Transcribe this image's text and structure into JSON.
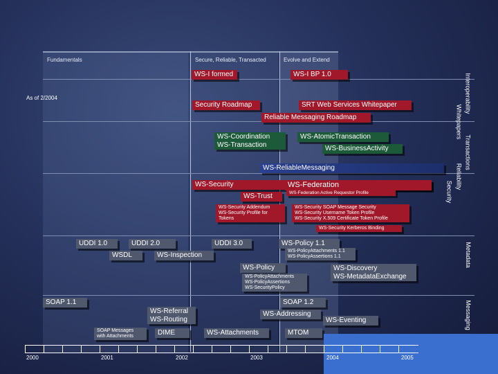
{
  "phases": [
    "Fundamentals",
    "Secure, Reliable, Transacted",
    "Evolve and Extend"
  ],
  "as_of": "As of 2/2004",
  "sides": {
    "interoperability": "Interoperability",
    "whitepapers": "Whitepapers",
    "transactions": "Transactions",
    "reliability": "Reliability",
    "security": "Security",
    "metadata": "Metadata",
    "messaging": "Messaging"
  },
  "boxes": {
    "wsi_formed": "WS-I formed",
    "wsi_bp": "WS-I BP 1.0",
    "security_roadmap": "Security Roadmap",
    "srt_whitepaper": "SRT Web Services Whitepaper",
    "reliable_roadmap": "Reliable Messaging Roadmap",
    "ws_coordination_1": "WS-Coordination",
    "ws_coordination_2": "WS-Transaction",
    "ws_atomic": "WS-AtomicTransaction",
    "ws_business": "WS-BusinessActivity",
    "ws_reliable": "WS-ReliableMessaging",
    "ws_security": "WS-Security",
    "ws_federation": "WS-Federation",
    "ws_trust": "WS-Trust",
    "ws_fed_active": "WS-Federation Active Requestor Profile",
    "sec_addendum_1": "WS-Security Addendum",
    "sec_addendum_2": "WS-Security Profile for",
    "sec_addendum_3": "Tokens",
    "sec_profiles_1": "WS-Security SOAP Message Security",
    "sec_profiles_2": "WS-Security Username Token Profile",
    "sec_profiles_3": "WS-Security X.509 Certificate Token Profile",
    "sec_kerberos": "WS-Security Kerberos Binding",
    "uddi1": "UDDI 1.0",
    "uddi2": "UDDI 2.0",
    "uddi3": "UDDI 3.0",
    "wsdl": "WSDL",
    "ws_inspection": "WS-Inspection",
    "ws_policy11": "WS-Policy 1.1",
    "ws_policy11_sub_1": "WS-PolicyAttachments 1.1",
    "ws_policy11_sub_2": "WS-PolicyAssertions 1.1",
    "ws_policy": "WS-Policy",
    "ws_policy_sub_1": "WS-PolicyAttachments",
    "ws_policy_sub_2": "WS-PolicyAssertions",
    "ws_policy_sub_3": "WS-SecurityPolicy",
    "ws_discovery_1": "WS-Discovery",
    "ws_discovery_2": "WS-MetadataExchange",
    "soap11": "SOAP 1.1",
    "soap12": "SOAP 1.2",
    "ws_addressing": "WS-Addressing",
    "ws_referral_1": "WS-Referral",
    "ws_referral_2": "WS-Routing",
    "soap_attach_1": "SOAP Messages",
    "soap_attach_2": "with Attachments",
    "dime": "DIME",
    "ws_attachments": "WS-Attachments",
    "mtom": "MTOM",
    "ws_eventing": "WS-Eventing"
  },
  "years": [
    "2000",
    "2001",
    "2002",
    "2003",
    "2004",
    "2005"
  ],
  "colors": {
    "red": "#a0182a",
    "green": "#1d5a3a",
    "grey": "#50586e",
    "blue": "#263b82"
  }
}
